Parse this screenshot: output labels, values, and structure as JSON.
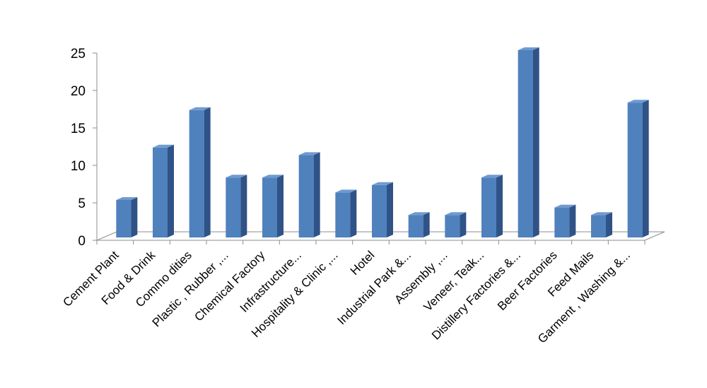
{
  "chart_data": {
    "type": "bar",
    "style": "3d-column",
    "title": "",
    "xlabel": "",
    "ylabel": "",
    "ylim": [
      0,
      25
    ],
    "yticks": [
      0,
      5,
      10,
      15,
      20,
      25
    ],
    "grid": false,
    "legend": "none",
    "categories": [
      "Cement Plant",
      "Food & Drink",
      "Commo dities",
      "Plastic , Rubber ,...",
      "Chemical Factory",
      "Infrastructure...",
      "Hospitality & Clinic ,...",
      "Hotel",
      "Industrial Park &...",
      "Assembly ,...",
      "Veneer, Teak...",
      "Distillery Factories &...",
      "Beer Factories",
      "Feed Mails",
      "Garment , Washing &..."
    ],
    "values": [
      5,
      12,
      17,
      8,
      8,
      11,
      6,
      7,
      3,
      3,
      8,
      25,
      4,
      3,
      18
    ],
    "colors": {
      "bar_front": "#4f81bd",
      "bar_side": "#2f5287",
      "bar_top": "#6f9ad1",
      "axis": "#8c8c8c"
    }
  }
}
